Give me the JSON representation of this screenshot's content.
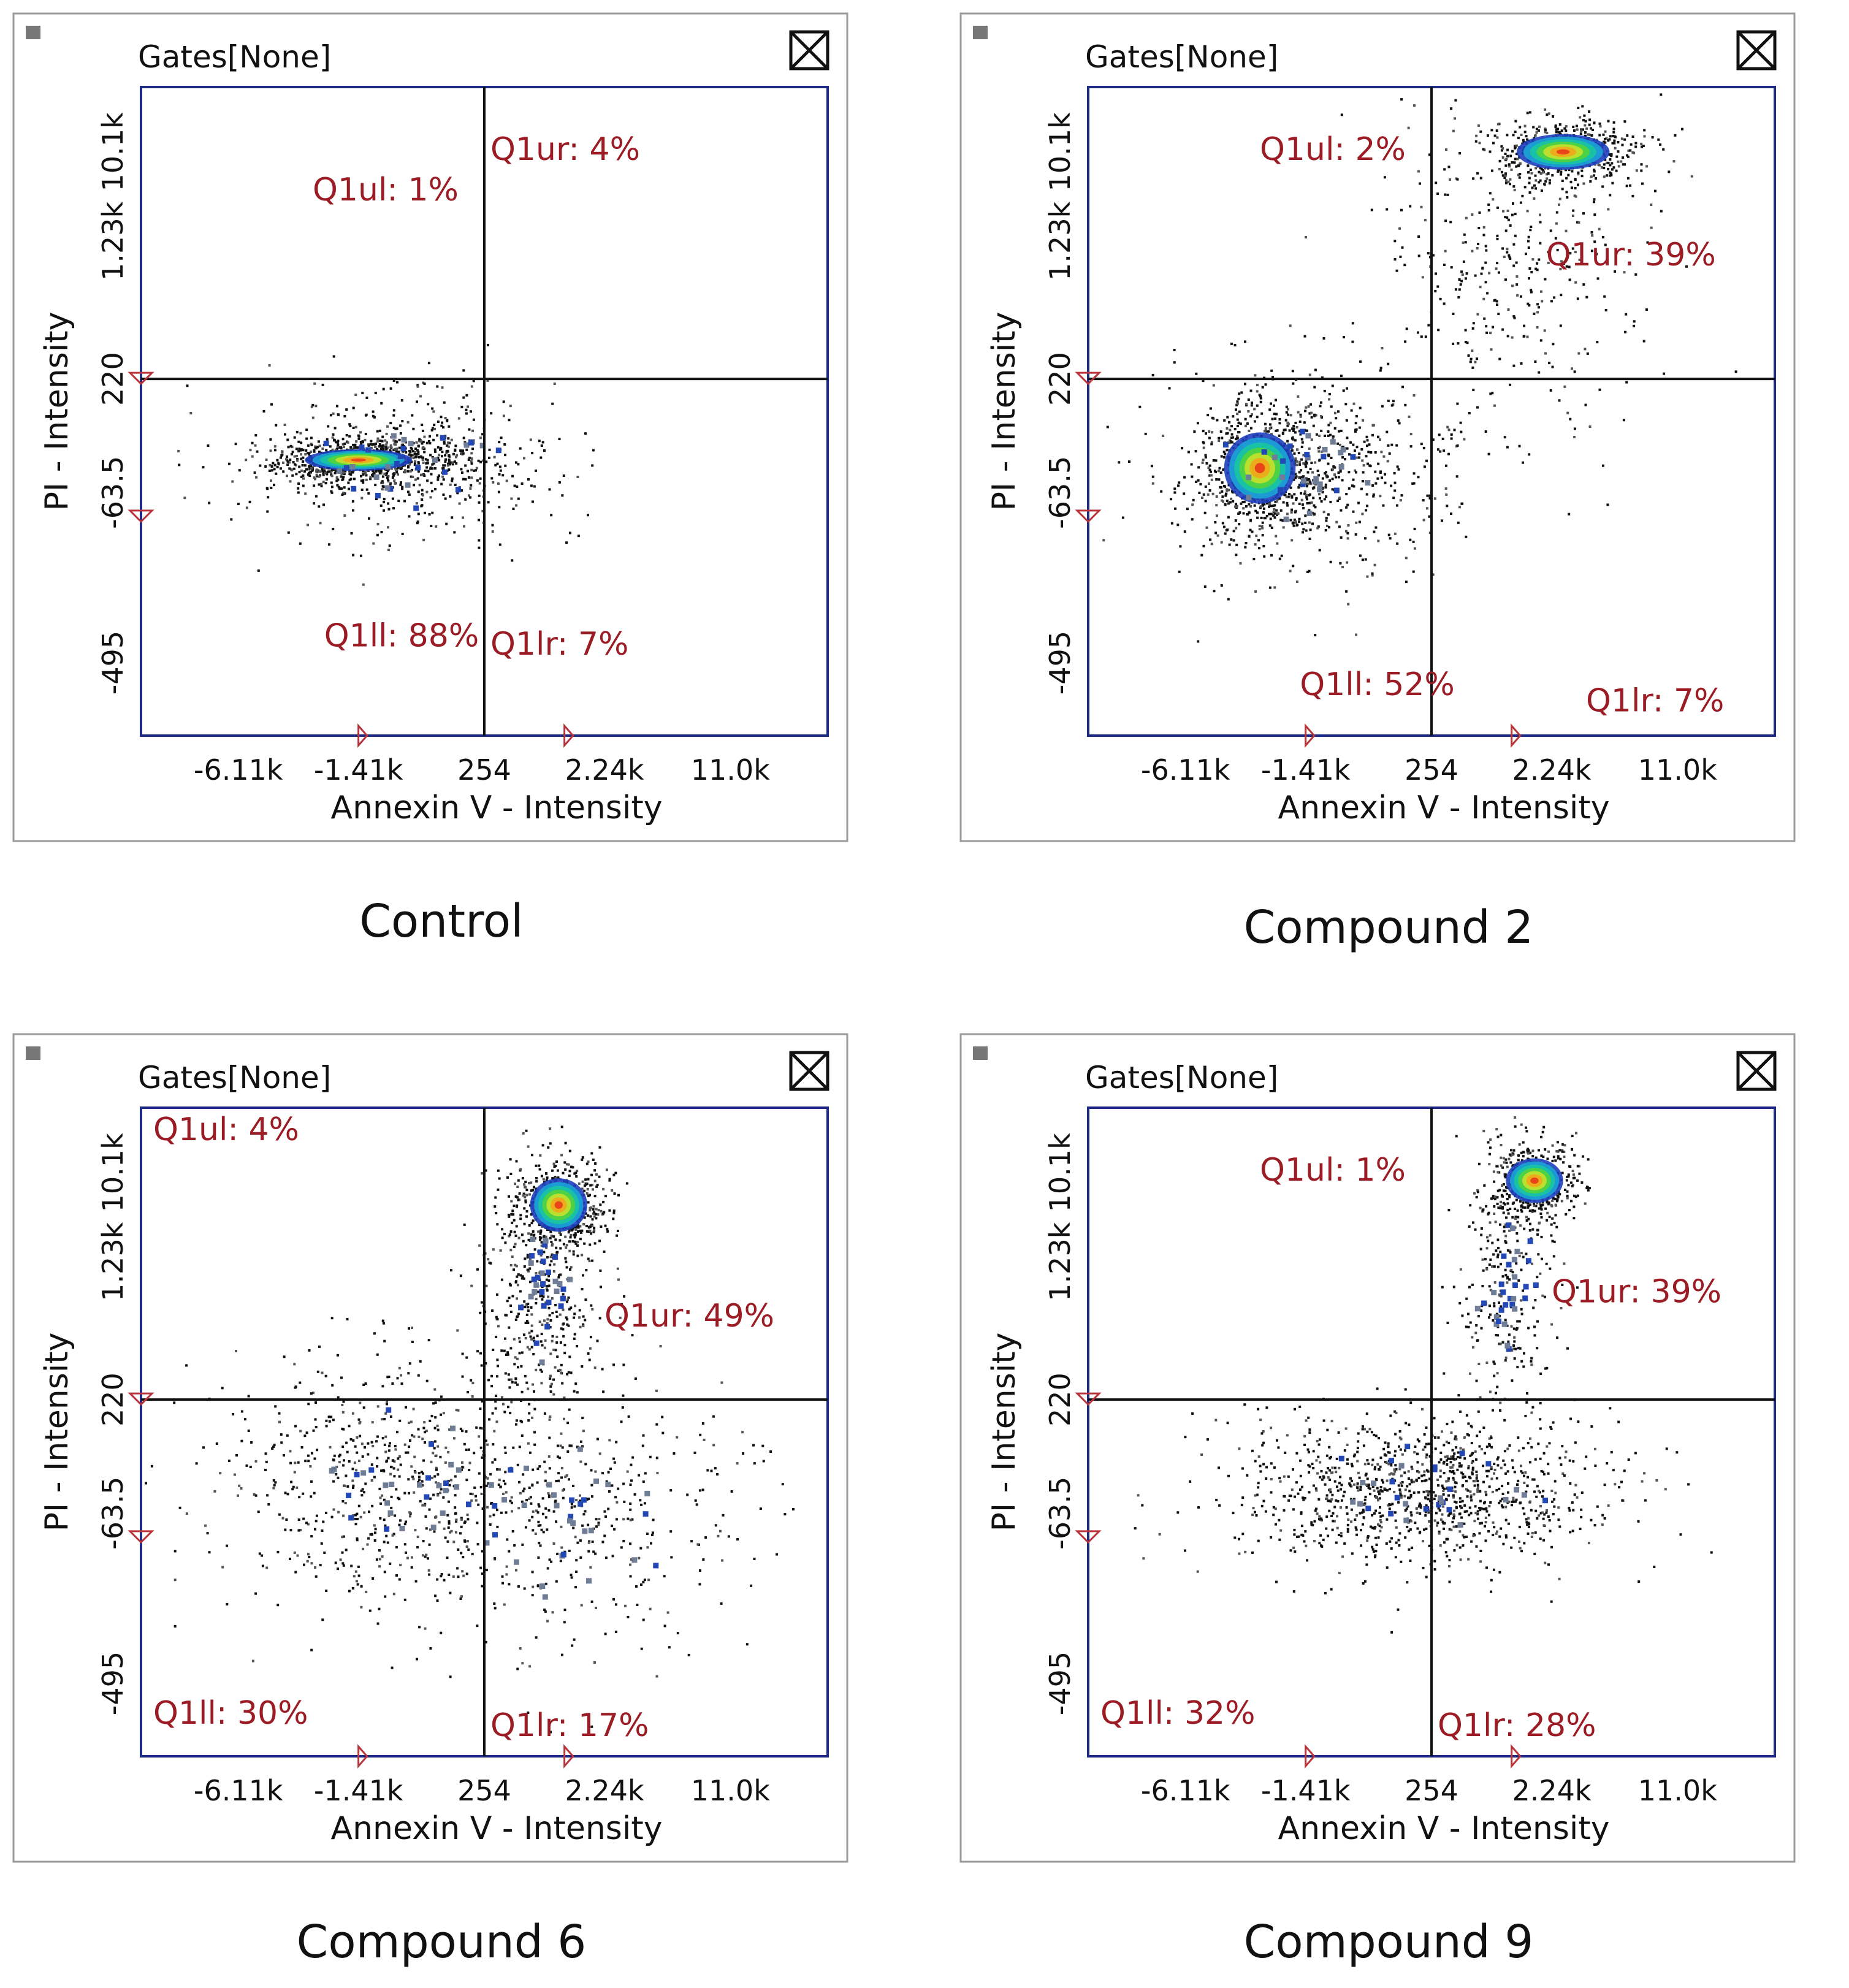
{
  "chart_data": [
    {
      "type": "scatter",
      "title": "Control",
      "gates_label": "Gates[None]",
      "xlabel": "Annexin V - Intensity",
      "ylabel": "PI - Intensity",
      "x_ticks": [
        "-6.11k",
        "-1.41k",
        "254",
        "2.24k",
        "11.0k"
      ],
      "y_ticks": [
        "-495",
        "-63.5",
        "220",
        "1.23k",
        "10.1k"
      ],
      "quadrants": {
        "ul": {
          "label": "Q1ul",
          "percent": 1
        },
        "ur": {
          "label": "Q1ur",
          "percent": 4
        },
        "ll": {
          "label": "Q1ll",
          "percent": 88
        },
        "lr": {
          "label": "Q1lr",
          "percent": 7
        }
      },
      "quadrant_labels": {
        "ul": "Q1ul: 1%",
        "ur": "Q1ur: 4%",
        "ll": "Q1ll: 88%",
        "lr": "Q1lr: 7%"
      },
      "clusters": [
        {
          "x": -2.2,
          "y": -0.4,
          "sx": 0.75,
          "sy": 0.12,
          "n": 700,
          "hot": true
        },
        {
          "x": -1.4,
          "y": -0.4,
          "sx": 1.3,
          "sy": 0.45,
          "n": 600,
          "hot": false
        }
      ]
    },
    {
      "type": "scatter",
      "title": "Compound 2",
      "gates_label": "Gates[None]",
      "xlabel": "Annexin V - Intensity",
      "ylabel": "PI - Intensity",
      "x_ticks": [
        "-6.11k",
        "-1.41k",
        "254",
        "2.24k",
        "11.0k"
      ],
      "y_ticks": [
        "-495",
        "-63.5",
        "220",
        "1.23k",
        "10.1k"
      ],
      "quadrants": {
        "ul": {
          "label": "Q1ul",
          "percent": 2
        },
        "ur": {
          "label": "Q1ur",
          "percent": 39
        },
        "ll": {
          "label": "Q1ll",
          "percent": 52
        },
        "lr": {
          "label": "Q1lr",
          "percent": 7
        }
      },
      "quadrant_labels": {
        "ul": "Q1ul: 2%",
        "ur": "Q1ur: 39%",
        "ll": "Q1ll: 52%",
        "lr": "Q1lr: 7%"
      },
      "clusters": [
        {
          "x": -3.0,
          "y": -0.5,
          "sx": 0.5,
          "sy": 0.4,
          "n": 500,
          "hot": true
        },
        {
          "x": -2.2,
          "y": -0.5,
          "sx": 1.2,
          "sy": 0.6,
          "n": 700,
          "hot": false
        },
        {
          "x": 2.3,
          "y": 3.4,
          "sx": 0.65,
          "sy": 0.2,
          "n": 550,
          "hot": true
        },
        {
          "x": 1.5,
          "y": 2.0,
          "sx": 1.2,
          "sy": 1.1,
          "n": 350,
          "hot": false
        }
      ]
    },
    {
      "type": "scatter",
      "title": "Compound 6",
      "gates_label": "Gates[None]",
      "xlabel": "Annexin V - Intensity",
      "ylabel": "PI - Intensity",
      "x_ticks": [
        "-6.11k",
        "-1.41k",
        "254",
        "2.24k",
        "11.0k"
      ],
      "y_ticks": [
        "-495",
        "-63.5",
        "220",
        "1.23k",
        "10.1k"
      ],
      "quadrants": {
        "ul": {
          "label": "Q1ul",
          "percent": 4
        },
        "ur": {
          "label": "Q1ur",
          "percent": 49
        },
        "ll": {
          "label": "Q1ll",
          "percent": 30
        },
        "lr": {
          "label": "Q1lr",
          "percent": 17
        }
      },
      "quadrant_labels": {
        "ul": "Q1ul: 4%",
        "ur": "Q1ur: 49%",
        "ll": "Q1ll: 30%",
        "lr": "Q1lr: 17%"
      },
      "clusters": [
        {
          "x": 1.3,
          "y": 3.0,
          "sx": 0.4,
          "sy": 0.3,
          "n": 500,
          "hot": true
        },
        {
          "x": 1.0,
          "y": 2.0,
          "sx": 0.55,
          "sy": 0.8,
          "n": 400,
          "hot": false
        },
        {
          "x": -1.5,
          "y": -0.4,
          "sx": 1.6,
          "sy": 0.8,
          "n": 700,
          "hot": false
        },
        {
          "x": 1.5,
          "y": -0.8,
          "sx": 1.5,
          "sy": 0.9,
          "n": 350,
          "hot": false
        }
      ]
    },
    {
      "type": "scatter",
      "title": "Compound 9",
      "gates_label": "Gates[None]",
      "xlabel": "Annexin V - Intensity",
      "ylabel": "PI - Intensity",
      "x_ticks": [
        "-6.11k",
        "-1.41k",
        "254",
        "2.24k",
        "11.0k"
      ],
      "y_ticks": [
        "-495",
        "-63.5",
        "220",
        "1.23k",
        "10.1k"
      ],
      "quadrants": {
        "ul": {
          "label": "Q1ul",
          "percent": 1
        },
        "ur": {
          "label": "Q1ur",
          "percent": 39
        },
        "ll": {
          "label": "Q1ll",
          "percent": 32
        },
        "lr": {
          "label": "Q1lr",
          "percent": 28
        }
      },
      "quadrant_labels": {
        "ul": "Q1ul: 1%",
        "ur": "Q1ur: 39%",
        "ll": "Q1ll: 32%",
        "lr": "Q1lr: 28%"
      },
      "clusters": [
        {
          "x": 1.8,
          "y": 3.3,
          "sx": 0.4,
          "sy": 0.25,
          "n": 450,
          "hot": true
        },
        {
          "x": 1.3,
          "y": 2.0,
          "sx": 0.4,
          "sy": 0.8,
          "n": 250,
          "hot": false
        },
        {
          "x": -0.2,
          "y": -0.5,
          "sx": 1.6,
          "sy": 0.45,
          "n": 1100,
          "hot": false
        }
      ]
    }
  ],
  "window": {
    "close_glyph": "☒"
  }
}
